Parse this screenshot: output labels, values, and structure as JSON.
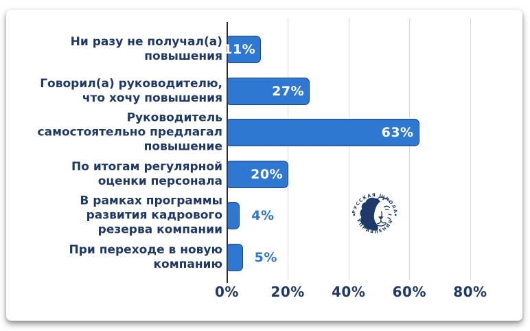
{
  "card": {
    "background": "#ffffff"
  },
  "chart_data": {
    "type": "bar",
    "orientation": "horizontal",
    "title": "",
    "categories": [
      "Ни разу не получал(а) повышения",
      "Говорил(а) руководителю, что хочу повышения",
      "Руководитель самостоятельно предлагал повышение",
      "По итогам регулярной оценки персонала",
      "В рамках программы развития кадрового резерва компании",
      "При переходе в новую компанию"
    ],
    "category_lines": [
      [
        "Ни разу не получал(а)",
        "повышения"
      ],
      [
        "Говорил(а) руководителю,",
        "что хочу повышения"
      ],
      [
        "Руководитель",
        "самостоятельно предлагал",
        "повышение"
      ],
      [
        "По итогам регулярной",
        "оценки персонала"
      ],
      [
        "В рамках программы",
        "развития кадрового",
        "резерва компании"
      ],
      [
        "При переходе в новую",
        "компанию"
      ]
    ],
    "values": [
      11,
      27,
      63,
      20,
      4,
      5
    ],
    "value_labels": [
      "11%",
      "27%",
      "63%",
      "20%",
      "4%",
      "5%"
    ],
    "value_label_inside": [
      true,
      true,
      true,
      true,
      false,
      false
    ],
    "x_ticks": [
      0,
      20,
      40,
      60,
      80
    ],
    "x_tick_labels": [
      "0%",
      "20%",
      "40%",
      "60%",
      "80%"
    ],
    "xlim": [
      0,
      97
    ],
    "grid": true,
    "legend": false,
    "colors": {
      "bar_fill": "#2f78d2",
      "bar_border": "#1c4273",
      "category_text": "#1f3864",
      "tick_text": "#1f3864",
      "value_inside": "#ffffff",
      "value_outside": "#2e74d2",
      "gridline": "#d9d9d9",
      "axis_line": "#2b2b2b"
    }
  },
  "logo": {
    "text_top": "РУССКАЯ ШКОЛА",
    "text_bottom": "УПРАВЛЕНИЯ",
    "separator": "•",
    "color": "#1e3a6a"
  }
}
